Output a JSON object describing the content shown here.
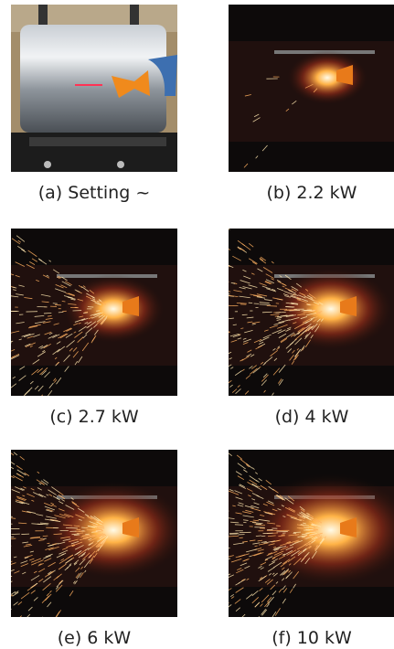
{
  "figure": {
    "panels": [
      {
        "caption": "(a) Setting ~"
      },
      {
        "caption": "(b) 2.2 kW"
      },
      {
        "caption": "(c) 2.7 kW"
      },
      {
        "caption": "(d) 4 kW"
      },
      {
        "caption": "(e) 6 kW"
      },
      {
        "caption": "(f) 10 kW"
      }
    ]
  }
}
